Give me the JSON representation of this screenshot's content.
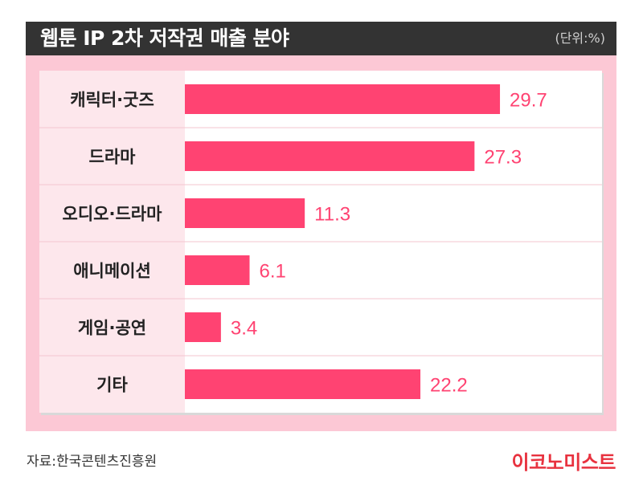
{
  "header": {
    "title": "웹툰 IP 2차 저작권 매출 분야",
    "unit": "(단위:%)"
  },
  "colors": {
    "bar": "#ff4372",
    "label_bg": "#fde7ec",
    "panel": "#fcc8d5",
    "value_text": "#ff4372"
  },
  "chart_data": {
    "type": "bar",
    "orientation": "horizontal",
    "categories": [
      "캐릭터·굿즈",
      "드라마",
      "오디오·드라마",
      "애니메이션",
      "게임·공연",
      "기타"
    ],
    "values": [
      29.7,
      27.3,
      11.3,
      6.1,
      3.4,
      22.2
    ],
    "value_labels": [
      "29.7",
      "27.3",
      "11.3",
      "6.1",
      "3.4",
      "22.2"
    ],
    "xlim": [
      0,
      35
    ],
    "grid": false,
    "legend": "none"
  },
  "footer": {
    "source": "자료:한국콘텐츠진흥원",
    "brand": "이코노미스트"
  }
}
